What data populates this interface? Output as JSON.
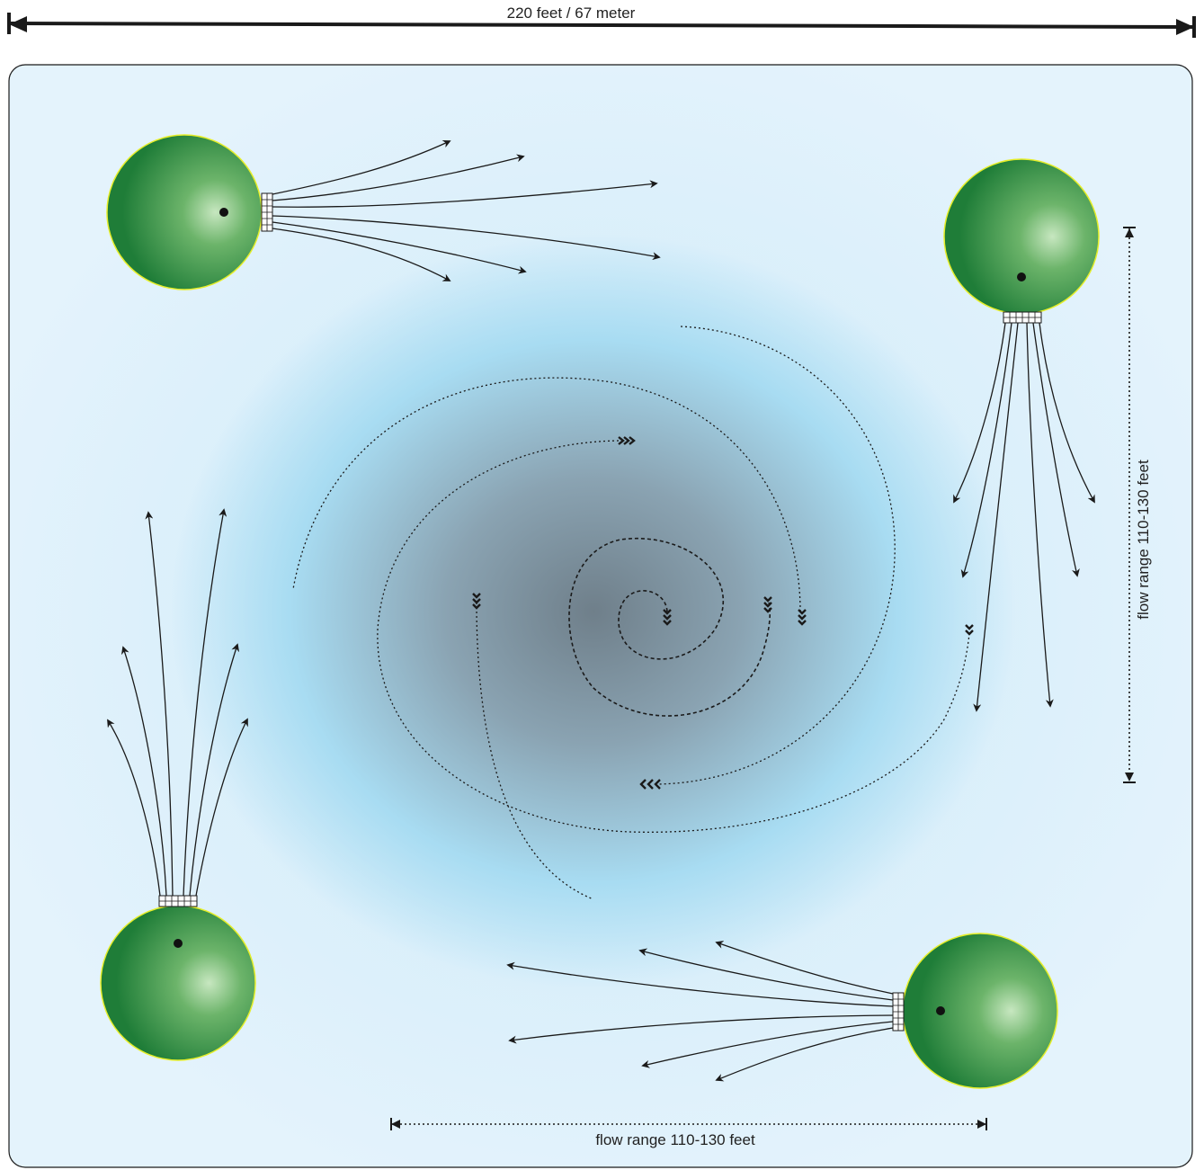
{
  "diagram": {
    "top_dimension": "220 feet / 67 meter",
    "side_flow_label": "flow range 110-130 feet",
    "bottom_flow_label": "flow range 110-130 feet",
    "units": [
      {
        "name": "aerator-top-left",
        "outlet": "east"
      },
      {
        "name": "aerator-top-right",
        "outlet": "south"
      },
      {
        "name": "aerator-bottom-left",
        "outlet": "north"
      },
      {
        "name": "aerator-bottom-right",
        "outlet": "west"
      }
    ],
    "colors": {
      "pond_edge": "#dff1fb",
      "pond_center": "#aee0f6",
      "vortex_core": "#6b7f8c",
      "aerator_light": "#9fd09a",
      "aerator_dark": "#1d7a35",
      "aerator_rim": "#e6ee2a",
      "ink": "#1a1a1a"
    }
  }
}
